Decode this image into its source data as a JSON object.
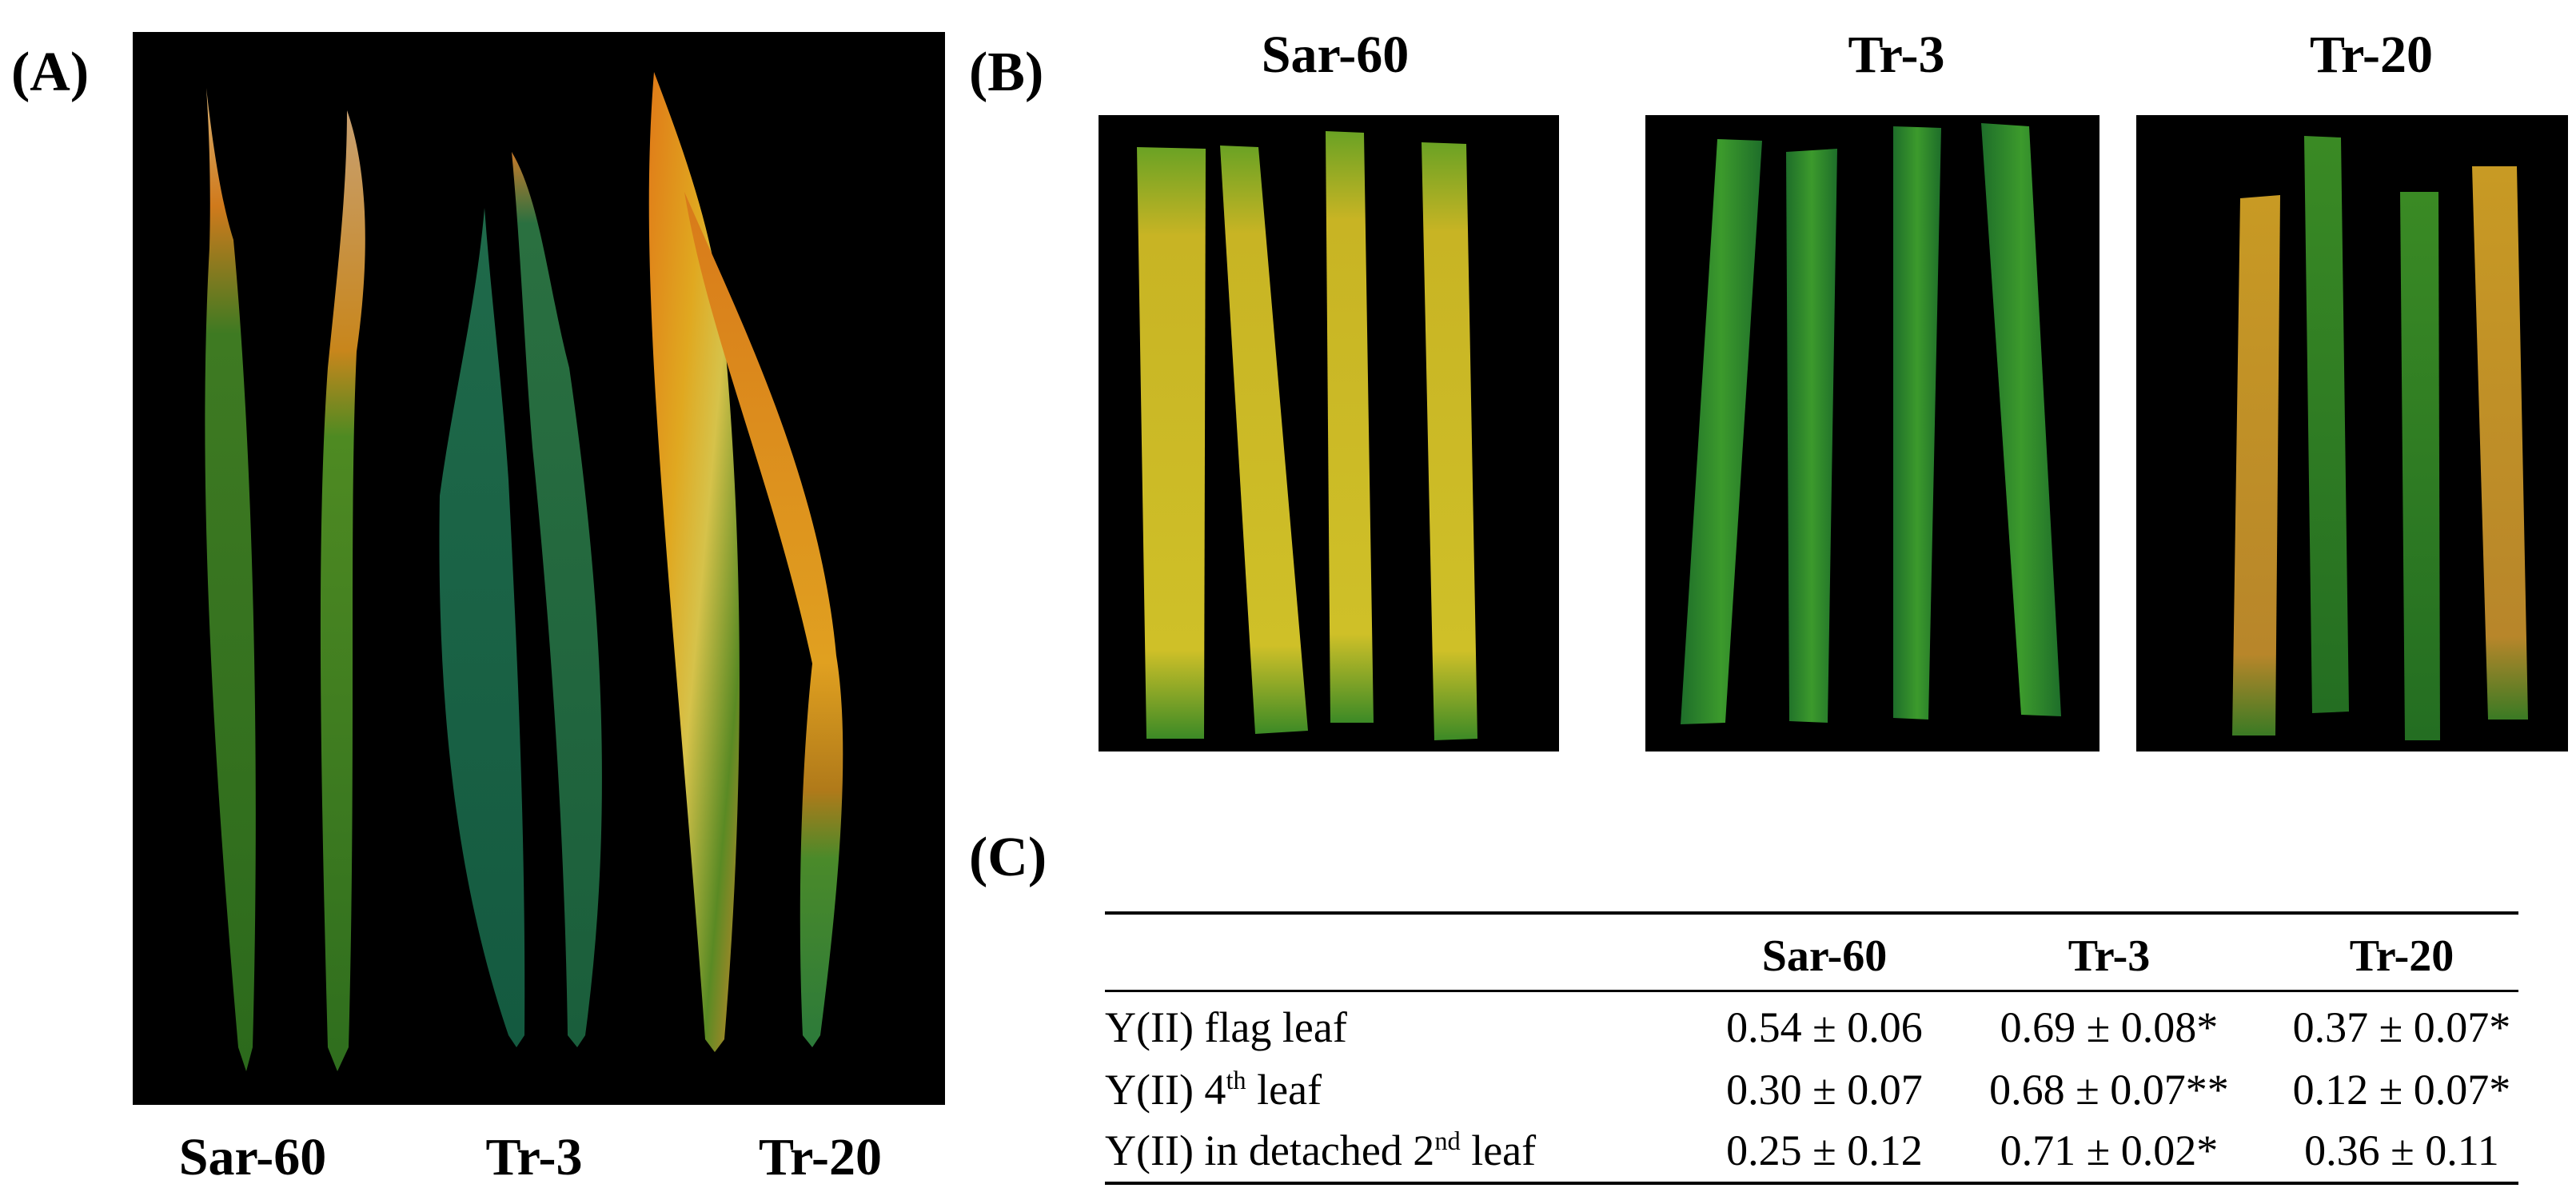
{
  "panels": {
    "A": {
      "label": "(A)",
      "genotypes": [
        "Sar-60",
        "Tr-3",
        "Tr-20"
      ]
    },
    "B": {
      "label": "(B)",
      "genotypes": [
        "Sar-60",
        "Tr-3",
        "Tr-20"
      ]
    },
    "C": {
      "label": "(C)",
      "table": {
        "columns": [
          "",
          "Sar-60",
          "Tr-3",
          "Tr-20"
        ],
        "rows": [
          {
            "label_pre": "Y(II) flag leaf",
            "label_sup": "",
            "label_post": "",
            "values": [
              "0.54 ± 0.06",
              "0.69 ± 0.08*",
              "0.37 ± 0.07*"
            ]
          },
          {
            "label_pre": "Y(II) 4",
            "label_sup": "th",
            "label_post": " leaf",
            "values": [
              "0.30 ± 0.07",
              "0.68 ± 0.07**",
              "0.12 ± 0.07*"
            ]
          },
          {
            "label_pre": "Y(II) in detached 2",
            "label_sup": "nd",
            "label_post": " leaf",
            "values": [
              "0.25 ± 0.12",
              "0.71 ± 0.02*",
              "0.36 ± 0.11"
            ]
          }
        ]
      }
    }
  }
}
